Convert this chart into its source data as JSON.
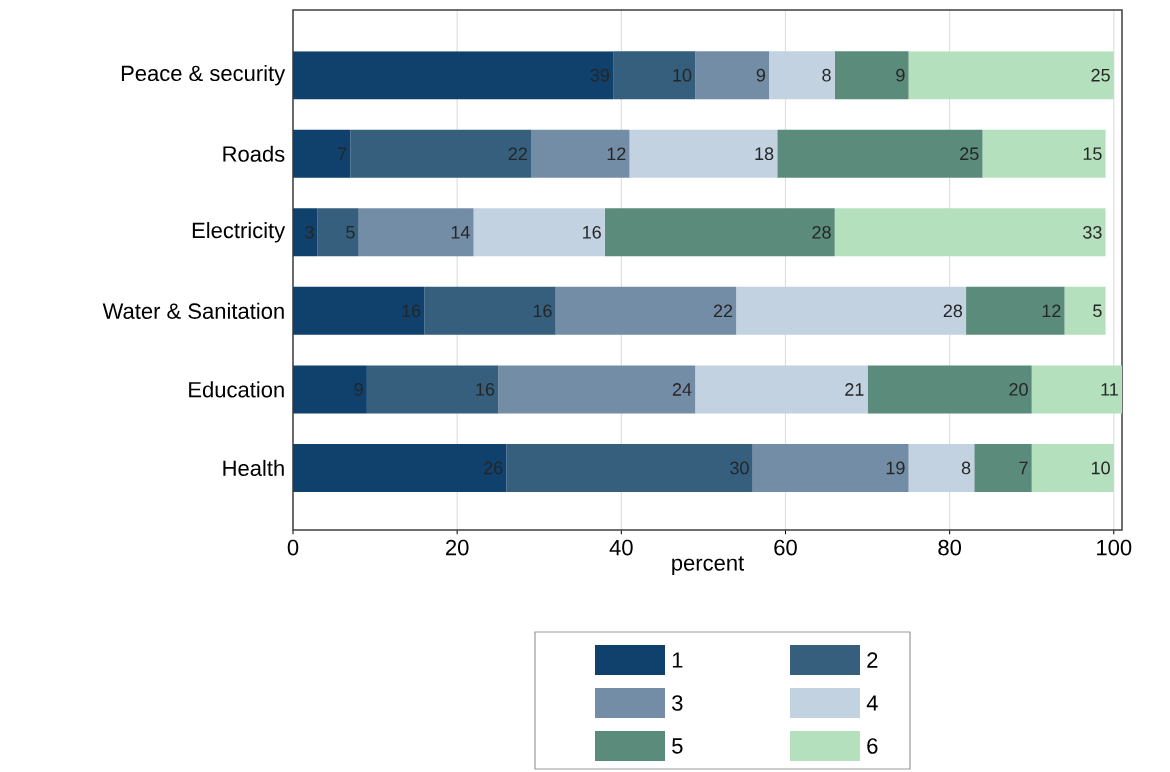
{
  "chart_data": {
    "type": "bar",
    "orientation": "horizontal",
    "stacked": true,
    "grid": "x",
    "legend": "bottom",
    "xlabel": "percent",
    "data_labels": true,
    "categories": [
      "Peace & security",
      "Roads",
      "Electricity",
      "Water & Sanitation",
      "Education",
      "Health"
    ],
    "xlim": [
      0,
      101
    ],
    "xticks": [
      0,
      20,
      40,
      60,
      80,
      100
    ],
    "series": [
      {
        "name": "1",
        "color": "#0f416c",
        "values": [
          39,
          7,
          3,
          16,
          9,
          26
        ]
      },
      {
        "name": "2",
        "color": "#355f7d",
        "values": [
          10,
          22,
          5,
          16,
          16,
          30
        ]
      },
      {
        "name": "3",
        "color": "#748da6",
        "values": [
          9,
          12,
          14,
          22,
          24,
          19
        ]
      },
      {
        "name": "4",
        "color": "#c2d2e0",
        "values": [
          8,
          18,
          16,
          28,
          21,
          8
        ]
      },
      {
        "name": "5",
        "color": "#5b8c7b",
        "values": [
          9,
          25,
          28,
          12,
          20,
          7
        ]
      },
      {
        "name": "6",
        "color": "#b4e0bd",
        "values": [
          25,
          15,
          33,
          5,
          11,
          10
        ]
      }
    ]
  }
}
